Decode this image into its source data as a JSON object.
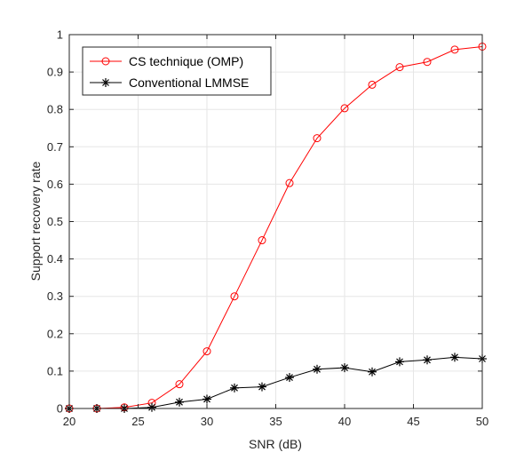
{
  "chart_data": {
    "type": "line",
    "title": "",
    "xlabel": "SNR (dB)",
    "ylabel": "Support recovery rate",
    "xlim": [
      20,
      50
    ],
    "ylim": [
      0,
      1
    ],
    "xticks": [
      20,
      25,
      30,
      35,
      40,
      45,
      50
    ],
    "yticks": [
      0,
      0.1,
      0.2,
      0.3,
      0.4,
      0.5,
      0.6,
      0.7,
      0.8,
      0.9,
      1
    ],
    "grid": true,
    "legend_position": "top-left",
    "x": [
      20,
      22,
      24,
      26,
      28,
      30,
      32,
      34,
      36,
      38,
      40,
      42,
      44,
      46,
      48,
      50
    ],
    "series": [
      {
        "name": "CS technique (OMP)",
        "color": "#ff0000",
        "marker": "circle",
        "values": [
          0.0,
          0.0,
          0.003,
          0.015,
          0.065,
          0.153,
          0.3,
          0.45,
          0.603,
          0.723,
          0.803,
          0.866,
          0.913,
          0.927,
          0.96,
          0.968
        ]
      },
      {
        "name": "Conventional LMMSE",
        "color": "#000000",
        "marker": "asterisk",
        "values": [
          0.0,
          0.0,
          0.0,
          0.003,
          0.017,
          0.025,
          0.055,
          0.058,
          0.083,
          0.105,
          0.109,
          0.098,
          0.125,
          0.13,
          0.137,
          0.133
        ]
      }
    ]
  }
}
